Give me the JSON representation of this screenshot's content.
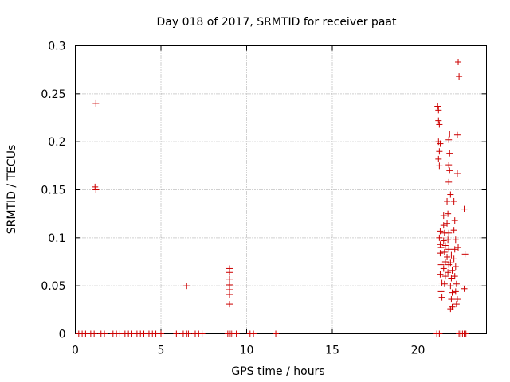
{
  "chart_data": {
    "type": "scatter",
    "title": "Day 018 of 2017, SRMTID for receiver paat",
    "xlabel": "GPS time / hours",
    "ylabel": "SRMTID / TECUs",
    "xlim": [
      0,
      24
    ],
    "ylim": [
      0,
      0.3
    ],
    "xticks": [
      0,
      5,
      10,
      15,
      20
    ],
    "xtick_labels": [
      "0",
      "5",
      "10",
      "15",
      "20"
    ],
    "yticks": [
      0,
      0.05,
      0.1,
      0.15,
      0.2,
      0.25,
      0.3
    ],
    "ytick_labels": [
      "0",
      "0.05",
      "0.1",
      "0.15",
      "0.2",
      "0.25",
      "0.3"
    ],
    "grid": true,
    "marker": "+",
    "color": "#cc0000",
    "series": [
      {
        "points": [
          [
            1.2,
            0.24
          ],
          [
            1.15,
            0.153
          ],
          [
            1.2,
            0.15
          ],
          [
            6.5,
            0.05
          ],
          [
            9.0,
            0.068
          ],
          [
            9.0,
            0.064
          ],
          [
            9.0,
            0.057
          ],
          [
            9.0,
            0.051
          ],
          [
            9.0,
            0.046
          ],
          [
            9.0,
            0.041
          ],
          [
            9.0,
            0.031
          ],
          [
            21.15,
            0.237
          ],
          [
            21.2,
            0.233
          ],
          [
            21.2,
            0.222
          ],
          [
            21.25,
            0.218
          ],
          [
            21.2,
            0.2
          ],
          [
            21.3,
            0.198
          ],
          [
            21.25,
            0.19
          ],
          [
            21.2,
            0.182
          ],
          [
            21.25,
            0.175
          ],
          [
            21.3,
            0.107
          ],
          [
            21.25,
            0.1
          ],
          [
            21.3,
            0.093
          ],
          [
            21.35,
            0.09
          ],
          [
            21.3,
            0.084
          ],
          [
            21.35,
            0.072
          ],
          [
            21.3,
            0.062
          ],
          [
            21.4,
            0.053
          ],
          [
            21.35,
            0.044
          ],
          [
            21.4,
            0.038
          ],
          [
            21.5,
            0.123
          ],
          [
            21.5,
            0.113
          ],
          [
            21.55,
            0.105
          ],
          [
            21.5,
            0.097
          ],
          [
            21.6,
            0.092
          ],
          [
            21.55,
            0.085
          ],
          [
            21.6,
            0.075
          ],
          [
            21.5,
            0.068
          ],
          [
            21.6,
            0.06
          ],
          [
            21.55,
            0.052
          ],
          [
            21.7,
            0.138
          ],
          [
            21.75,
            0.125
          ],
          [
            21.7,
            0.115
          ],
          [
            21.8,
            0.105
          ],
          [
            21.75,
            0.098
          ],
          [
            21.8,
            0.088
          ],
          [
            21.7,
            0.08
          ],
          [
            21.8,
            0.072
          ],
          [
            21.75,
            0.064
          ],
          [
            21.85,
            0.208
          ],
          [
            21.8,
            0.202
          ],
          [
            21.85,
            0.188
          ],
          [
            21.8,
            0.176
          ],
          [
            21.85,
            0.17
          ],
          [
            21.8,
            0.158
          ],
          [
            21.9,
            0.145
          ],
          [
            21.95,
            0.082
          ],
          [
            21.9,
            0.074
          ],
          [
            22.0,
            0.066
          ],
          [
            21.95,
            0.058
          ],
          [
            21.9,
            0.05
          ],
          [
            22.0,
            0.043
          ],
          [
            21.95,
            0.036
          ],
          [
            22.0,
            0.028
          ],
          [
            21.9,
            0.026
          ],
          [
            22.1,
            0.138
          ],
          [
            22.15,
            0.118
          ],
          [
            22.1,
            0.108
          ],
          [
            22.2,
            0.098
          ],
          [
            22.15,
            0.088
          ],
          [
            22.1,
            0.078
          ],
          [
            22.2,
            0.07
          ],
          [
            22.15,
            0.06
          ],
          [
            22.25,
            0.052
          ],
          [
            22.2,
            0.044
          ],
          [
            22.3,
            0.036
          ],
          [
            22.25,
            0.031
          ],
          [
            22.35,
            0.283
          ],
          [
            22.4,
            0.268
          ],
          [
            22.3,
            0.207
          ],
          [
            22.3,
            0.167
          ],
          [
            22.35,
            0.09
          ],
          [
            22.7,
            0.13
          ],
          [
            22.75,
            0.083
          ],
          [
            22.7,
            0.047
          ]
        ],
        "zero_x": [
          0.2,
          0.4,
          0.6,
          0.9,
          1.1,
          1.5,
          1.7,
          2.2,
          2.4,
          2.6,
          2.9,
          3.1,
          3.3,
          3.6,
          3.8,
          4.0,
          4.3,
          4.5,
          4.7,
          5.0,
          5.9,
          6.3,
          6.5,
          6.6,
          7.0,
          7.2,
          7.4,
          8.9,
          9.0,
          9.1,
          9.2,
          9.4,
          10.2,
          10.4,
          11.7,
          21.1,
          21.25,
          22.4,
          22.5,
          22.6,
          22.7,
          22.8
        ]
      }
    ]
  }
}
